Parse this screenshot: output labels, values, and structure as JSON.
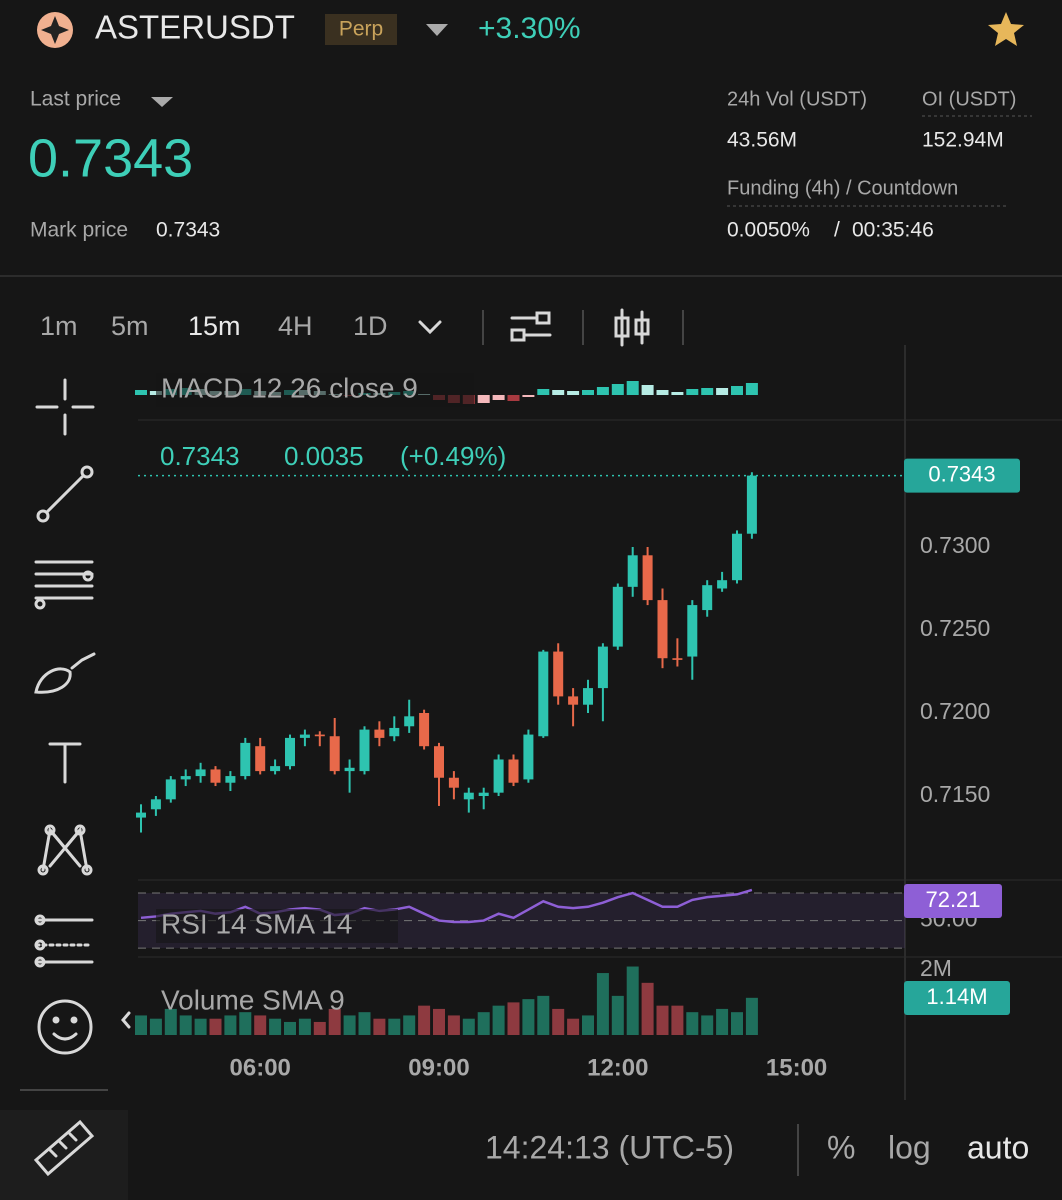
{
  "header": {
    "symbol": "ASTERUSDT",
    "badge": "Perp",
    "change": "+3.30%"
  },
  "price_panel": {
    "last_price_label": "Last price",
    "last_price": "0.7343",
    "mark_price_label": "Mark price",
    "mark_price": "0.7343"
  },
  "stats": {
    "vol_label": "24h Vol (USDT)",
    "vol": "43.56M",
    "oi_label": "OI (USDT)",
    "oi": "152.94M",
    "funding_label": "Funding (4h) / Countdown",
    "funding": "0.0050%",
    "separator": "/",
    "countdown": "00:35:46"
  },
  "intervals": [
    "1m",
    "5m",
    "15m",
    "4H",
    "1D"
  ],
  "chart_data": {
    "type": "candlestick",
    "x": [
      "04:00",
      "04:15",
      "04:30",
      "04:45",
      "05:00",
      "05:15",
      "05:30",
      "05:45",
      "06:00",
      "06:15",
      "06:30",
      "06:45",
      "07:00",
      "07:15",
      "07:30",
      "07:45",
      "08:00",
      "08:15",
      "08:30",
      "08:45",
      "09:00",
      "09:15",
      "09:30",
      "09:45",
      "10:00",
      "10:15",
      "10:30",
      "10:45",
      "11:00",
      "11:15",
      "11:30",
      "11:45",
      "12:00",
      "12:15",
      "12:30",
      "12:45",
      "13:00",
      "13:15",
      "13:30",
      "13:45",
      "14:00",
      "14:15"
    ],
    "xticks": [
      "06:00",
      "09:00",
      "12:00",
      "15:00"
    ],
    "candles": {
      "open": [
        0.7137,
        0.7142,
        0.7148,
        0.716,
        0.7162,
        0.7166,
        0.7158,
        0.7162,
        0.718,
        0.7165,
        0.7168,
        0.7185,
        0.7187,
        0.7186,
        0.7165,
        0.7165,
        0.719,
        0.7186,
        0.7192,
        0.72,
        0.718,
        0.7161,
        0.7148,
        0.715,
        0.7152,
        0.7172,
        0.716,
        0.7186,
        0.7237,
        0.721,
        0.7205,
        0.7215,
        0.724,
        0.7276,
        0.7295,
        0.7268,
        0.7233,
        0.7234,
        0.7262,
        0.7275,
        0.728,
        0.7308
      ],
      "high": [
        0.7145,
        0.715,
        0.7162,
        0.7166,
        0.717,
        0.7168,
        0.7165,
        0.7185,
        0.7185,
        0.7172,
        0.7187,
        0.719,
        0.7189,
        0.7197,
        0.7172,
        0.7192,
        0.7195,
        0.7198,
        0.7208,
        0.7202,
        0.7182,
        0.7165,
        0.7155,
        0.7155,
        0.7175,
        0.7175,
        0.719,
        0.7238,
        0.7242,
        0.7215,
        0.722,
        0.7242,
        0.7278,
        0.73,
        0.73,
        0.7275,
        0.7245,
        0.7268,
        0.728,
        0.7285,
        0.731,
        0.7345
      ],
      "low": [
        0.7128,
        0.7138,
        0.7146,
        0.7156,
        0.7158,
        0.7156,
        0.7153,
        0.716,
        0.7163,
        0.7163,
        0.7166,
        0.718,
        0.718,
        0.7163,
        0.7152,
        0.7163,
        0.718,
        0.7183,
        0.7188,
        0.7178,
        0.7144,
        0.7148,
        0.714,
        0.7142,
        0.715,
        0.7156,
        0.7158,
        0.7185,
        0.7205,
        0.7192,
        0.72,
        0.7195,
        0.7238,
        0.727,
        0.7265,
        0.7227,
        0.7228,
        0.722,
        0.7258,
        0.7273,
        0.7278,
        0.7305
      ],
      "close": [
        0.714,
        0.7148,
        0.716,
        0.7162,
        0.7166,
        0.7158,
        0.7162,
        0.7182,
        0.7165,
        0.7168,
        0.7185,
        0.7187,
        0.7186,
        0.7165,
        0.7167,
        0.719,
        0.7185,
        0.7191,
        0.7198,
        0.718,
        0.7161,
        0.7155,
        0.7152,
        0.7152,
        0.7172,
        0.7158,
        0.7187,
        0.7237,
        0.721,
        0.7205,
        0.7215,
        0.724,
        0.7276,
        0.7295,
        0.7268,
        0.7233,
        0.7232,
        0.7265,
        0.7277,
        0.728,
        0.7308,
        0.7343
      ],
      "up_color": "#2ec4b0",
      "down_color": "#e8694a",
      "last_close_label": "0.7343"
    },
    "legend": {
      "close": "0.7343",
      "change": "0.0035",
      "change_pct": "(+0.49%)"
    },
    "ylim": [
      0.70994,
      0.73765
    ],
    "yticks": [
      {
        "value": 0.715,
        "label": "0.7150"
      },
      {
        "value": 0.72,
        "label": "0.7200"
      },
      {
        "value": 0.725,
        "label": "0.7250"
      },
      {
        "value": 0.73,
        "label": "0.7300"
      }
    ],
    "macd": {
      "title": "MACD 12 26 close 9",
      "ylim": [
        -2,
        5
      ],
      "values": [
        0.5,
        0.4,
        0.6,
        0.7,
        0.6,
        0.4,
        0.4,
        0.6,
        0.4,
        0.3,
        0.5,
        0.5,
        0.4,
        0.1,
        -0.1,
        0.2,
        0.2,
        0.3,
        0.4,
        0.1,
        -0.5,
        -0.8,
        -0.9,
        -0.8,
        -0.5,
        -0.6,
        -0.2,
        0.6,
        0.5,
        0.4,
        0.5,
        0.8,
        1.1,
        1.4,
        1.0,
        0.5,
        0.3,
        0.6,
        0.7,
        0.7,
        0.9,
        1.2
      ]
    },
    "rsi": {
      "title": "RSI 14 SMA 14",
      "color": "#8e5fd6",
      "ylim": [
        25,
        78
      ],
      "bands": [
        70,
        30
      ],
      "yticks": [
        {
          "value": 50,
          "label": "50.00"
        }
      ],
      "values": [
        52,
        53,
        55,
        56,
        57,
        55,
        56,
        60,
        55,
        56,
        58,
        59,
        58,
        54,
        55,
        59,
        57,
        58,
        60,
        55,
        50,
        49,
        49,
        50,
        55,
        52,
        58,
        64,
        60,
        59,
        60,
        63,
        67,
        70,
        65,
        60,
        60,
        65,
        67,
        68,
        69,
        72.21
      ]
    },
    "volume": {
      "title": "Volume SMA 9",
      "ylim": [
        0,
        2.3
      ],
      "up_color": "#1f6f5c",
      "down_color": "#8e3a40",
      "yticks": [
        {
          "value": 2,
          "label": "2M"
        }
      ],
      "values": [
        0.6,
        0.5,
        0.8,
        0.6,
        0.5,
        0.5,
        0.6,
        0.7,
        0.6,
        0.5,
        0.4,
        0.5,
        0.4,
        0.8,
        0.6,
        0.7,
        0.5,
        0.5,
        0.6,
        0.9,
        0.8,
        0.6,
        0.5,
        0.7,
        0.9,
        1.0,
        1.1,
        1.2,
        0.8,
        0.5,
        0.6,
        1.9,
        1.2,
        2.1,
        1.6,
        0.9,
        0.9,
        0.7,
        0.6,
        0.8,
        0.7,
        1.14
      ],
      "last_value_label": "1.14M"
    }
  },
  "footer": {
    "time": "14:24:13 (UTC-5)",
    "percent": "%",
    "log": "log",
    "auto": "auto"
  }
}
